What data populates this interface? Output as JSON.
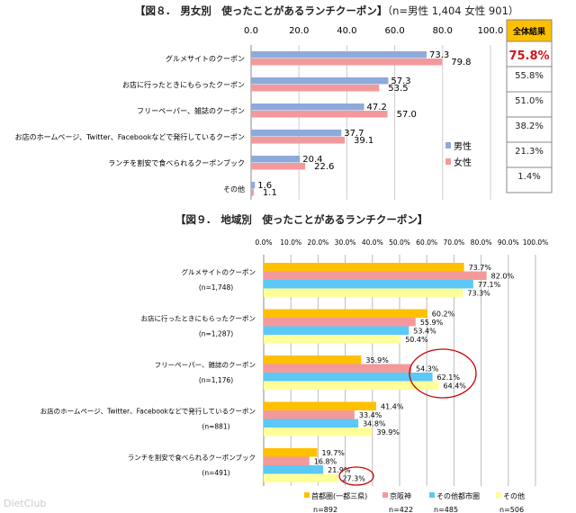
{
  "watermark": "DietClub",
  "chart_data": [
    {
      "type": "bar",
      "title": "【図８.　男女別　使ったことがあるランチクーポン】",
      "subtitle": "（n=男性 1,404  女性 901）",
      "categories": [
        "グルメサイトのクーポン",
        "お店に行ったときにもらったクーポン",
        "フリーペーパー、雑誌のクーポン",
        "お店のホームページ、Twitter、Facebookなどで発行しているクーポン",
        "ランチを割安で食べられるクーポンブック",
        "その他"
      ],
      "xticks": [
        "0.0",
        "20.0",
        "40.0",
        "60.0",
        "80.0",
        "100.0"
      ],
      "xlim": [
        0,
        100
      ],
      "series": [
        {
          "name": "男性",
          "color": "#8eaadb",
          "values": [
            73.3,
            57.3,
            47.2,
            37.7,
            20.4,
            1.6
          ]
        },
        {
          "name": "女性",
          "color": "#f4999b",
          "values": [
            79.8,
            53.5,
            57.0,
            39.1,
            22.6,
            1.1
          ]
        }
      ],
      "total_header": "全体結果",
      "total_values": [
        "75.8%",
        "55.8%",
        "51.0%",
        "38.2%",
        "21.3%",
        "1.4%"
      ],
      "legend": "right"
    },
    {
      "type": "bar",
      "title": "【図９.　地域別　使ったことがあるランチクーポン】",
      "categories": [
        "グルメサイトのクーポン",
        "お店に行ったときにもらったクーポン",
        "フリーペーパー、雑誌のクーポン",
        "お店のホームページ、Twitter、Facebookなどで発行しているクーポン",
        "ランチを割安で食べられるクーポンブック"
      ],
      "category_n": [
        "(n=1,748)",
        "(n=1,287)",
        "(n=1,176)",
        "(n=881)",
        "(n=491)"
      ],
      "xticks": [
        "0.0%",
        "10.0%",
        "20.0%",
        "30.0%",
        "40.0%",
        "50.0%",
        "60.0%",
        "70.0%",
        "80.0%",
        "90.0%",
        "100.0%"
      ],
      "xlim": [
        0,
        100
      ],
      "series": [
        {
          "name": "首都圏(一都三県)",
          "n": "n=892",
          "color": "#ffc000",
          "values": [
            73.7,
            60.2,
            35.9,
            41.4,
            19.7
          ]
        },
        {
          "name": "京阪神",
          "n": "n=422",
          "color": "#f4999b",
          "values": [
            82.0,
            55.9,
            54.3,
            33.4,
            16.8
          ]
        },
        {
          "name": "その他都市圏",
          "n": "n=485",
          "color": "#5bc8f5",
          "values": [
            77.1,
            53.4,
            62.1,
            34.8,
            21.9
          ]
        },
        {
          "name": "その他",
          "n": "n=506",
          "color": "#ffff99",
          "values": [
            73.3,
            50.4,
            64.4,
            39.9,
            27.3
          ]
        }
      ],
      "legend": "bottom"
    }
  ]
}
